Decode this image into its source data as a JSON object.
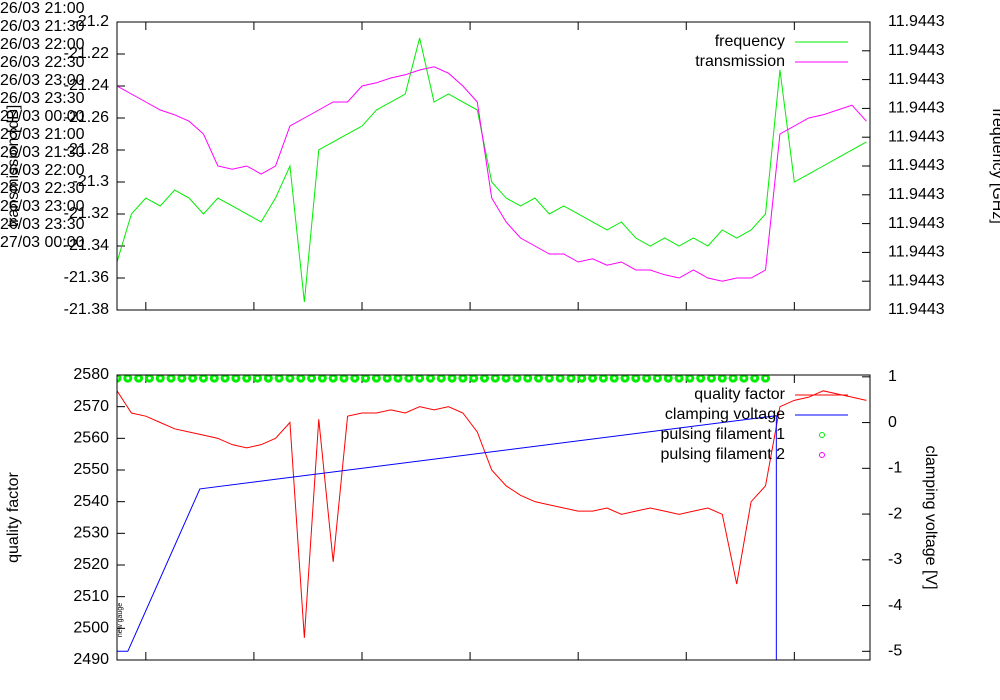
{
  "chart_data": [
    {
      "type": "line",
      "ylabel": "transmission [dB]",
      "y2label": "frequency [GHz]",
      "legend": "top right",
      "xlim": [
        "26/03 20:52",
        "27/03 00:21"
      ],
      "xticks": [
        {
          "value": "26/03 21:00",
          "label": "26/03\n21:00"
        },
        {
          "value": "26/03 21:30",
          "label": "26/03\n21:30"
        },
        {
          "value": "26/03 22:00",
          "label": "26/03\n22:00"
        },
        {
          "value": "26/03 22:30",
          "label": "26/03\n22:30"
        },
        {
          "value": "26/03 23:00",
          "label": "26/03\n23:00"
        },
        {
          "value": "26/03 23:30",
          "label": "26/03\n23:30"
        },
        {
          "value": "27/03 00:00",
          "label": "27/03\n00:00"
        }
      ],
      "ylim": [
        -21.38,
        -21.2
      ],
      "yticks": [
        -21.2,
        -21.22,
        -21.24,
        -21.26,
        -21.28,
        -21.3,
        -21.32,
        -21.34,
        -21.36,
        -21.38
      ],
      "y2lim": [
        11.94428,
        11.94433
      ],
      "y2ticks": [
        {
          "value": 11.94428,
          "label": "11.9443"
        },
        {
          "value": 11.944285,
          "label": "11.9443"
        },
        {
          "value": 11.94429,
          "label": "11.9443"
        },
        {
          "value": 11.944295,
          "label": "11.9443"
        },
        {
          "value": 11.9443,
          "label": "11.9443"
        },
        {
          "value": 11.944305,
          "label": "11.9443"
        },
        {
          "value": 11.94431,
          "label": "11.9443"
        },
        {
          "value": 11.944315,
          "label": "11.9443"
        },
        {
          "value": 11.94432,
          "label": "11.9443"
        },
        {
          "value": 11.944325,
          "label": "11.9443"
        },
        {
          "value": 11.94433,
          "label": "11.9443"
        }
      ],
      "x": [
        "26/03 20:52",
        "26/03 20:56",
        "26/03 21:00",
        "26/03 21:04",
        "26/03 21:08",
        "26/03 21:12",
        "26/03 21:16",
        "26/03 21:20",
        "26/03 21:24",
        "26/03 21:28",
        "26/03 21:32",
        "26/03 21:36",
        "26/03 21:40",
        "26/03 21:44",
        "26/03 21:48",
        "26/03 21:52",
        "26/03 21:56",
        "26/03 22:00",
        "26/03 22:04",
        "26/03 22:08",
        "26/03 22:12",
        "26/03 22:16",
        "26/03 22:20",
        "26/03 22:24",
        "26/03 22:28",
        "26/03 22:32",
        "26/03 22:36",
        "26/03 22:40",
        "26/03 22:44",
        "26/03 22:48",
        "26/03 22:52",
        "26/03 22:56",
        "26/03 23:00",
        "26/03 23:04",
        "26/03 23:08",
        "26/03 23:12",
        "26/03 23:16",
        "26/03 23:20",
        "26/03 23:24",
        "26/03 23:28",
        "26/03 23:32",
        "26/03 23:36",
        "26/03 23:40",
        "26/03 23:44",
        "26/03 23:48",
        "26/03 23:52",
        "26/03 23:56",
        "27/03 00:00",
        "27/03 00:04",
        "27/03 00:08",
        "27/03 00:12",
        "27/03 00:16",
        "27/03 00:20"
      ],
      "series": [
        {
          "name": "frequency",
          "color": "#00ee00",
          "axis": "y2",
          "marker": "line",
          "values": [
            11.94428833,
            11.94429667,
            11.94429944,
            11.94429806,
            11.94430083,
            11.94429944,
            11.94429667,
            11.94429944,
            11.94429806,
            11.94429667,
            11.94429528,
            11.94429944,
            11.944305,
            11.94428139,
            11.94430778,
            11.94430917,
            11.94431056,
            11.94431194,
            11.94431472,
            11.94431611,
            11.9443175,
            11.94432722,
            11.94431611,
            11.9443175,
            11.94431611,
            11.94431472,
            11.94430222,
            11.94429944,
            11.94429806,
            11.94429944,
            11.94429667,
            11.94429806,
            11.94429667,
            11.94429528,
            11.94429389,
            11.94429528,
            11.9442925,
            11.94429111,
            11.9442925,
            11.94429111,
            11.9442925,
            11.94429111,
            11.94429389,
            11.9442925,
            11.94429389,
            11.94429667,
            11.94432167,
            11.94430222,
            11.94430361,
            11.944305,
            11.94430639,
            11.94430778,
            11.94430917
          ]
        },
        {
          "name": "transmission",
          "color": "#ff00ff",
          "marker": "line",
          "values": [
            -21.24,
            -21.245,
            -21.25,
            -21.255,
            -21.258,
            -21.262,
            -21.27,
            -21.29,
            -21.292,
            -21.29,
            -21.295,
            -21.29,
            -21.265,
            -21.26,
            -21.255,
            -21.25,
            -21.25,
            -21.24,
            -21.238,
            -21.235,
            -21.233,
            -21.23,
            -21.228,
            -21.232,
            -21.24,
            -21.25,
            -21.31,
            -21.325,
            -21.335,
            -21.34,
            -21.345,
            -21.345,
            -21.35,
            -21.348,
            -21.352,
            -21.35,
            -21.355,
            -21.355,
            -21.358,
            -21.36,
            -21.355,
            -21.36,
            -21.362,
            -21.36,
            -21.36,
            -21.355,
            -21.27,
            -21.265,
            -21.26,
            -21.258,
            -21.255,
            -21.252,
            -21.262
          ]
        }
      ]
    },
    {
      "type": "line",
      "ylabel": "quality factor",
      "y2label": "clamping voltage [V]",
      "legend": "top right",
      "annotation": "new gauge",
      "xlim": [
        "26/03 20:52",
        "27/03 00:21"
      ],
      "xticks": [
        {
          "value": "26/03 21:00",
          "label": "26/03\n21:00"
        },
        {
          "value": "26/03 21:30",
          "label": "26/03\n21:30"
        },
        {
          "value": "26/03 22:00",
          "label": "26/03\n22:00"
        },
        {
          "value": "26/03 22:30",
          "label": "26/03\n22:30"
        },
        {
          "value": "26/03 23:00",
          "label": "26/03\n23:00"
        },
        {
          "value": "26/03 23:30",
          "label": "26/03\n23:30"
        },
        {
          "value": "27/03 00:00",
          "label": "27/03\n00:00"
        }
      ],
      "ylim": [
        2490,
        2580
      ],
      "yticks": [
        2580,
        2570,
        2560,
        2550,
        2540,
        2530,
        2520,
        2510,
        2500,
        2490
      ],
      "y2lim": [
        -5.19,
        1.04
      ],
      "y2ticks": [
        1,
        0,
        -1,
        -2,
        -3,
        -4,
        -5
      ],
      "x": [
        "26/03 20:52",
        "26/03 20:56",
        "26/03 21:00",
        "26/03 21:04",
        "26/03 21:08",
        "26/03 21:12",
        "26/03 21:16",
        "26/03 21:20",
        "26/03 21:24",
        "26/03 21:28",
        "26/03 21:32",
        "26/03 21:36",
        "26/03 21:40",
        "26/03 21:44",
        "26/03 21:48",
        "26/03 21:52",
        "26/03 21:56",
        "26/03 22:00",
        "26/03 22:04",
        "26/03 22:08",
        "26/03 22:12",
        "26/03 22:16",
        "26/03 22:20",
        "26/03 22:24",
        "26/03 22:28",
        "26/03 22:32",
        "26/03 22:36",
        "26/03 22:40",
        "26/03 22:44",
        "26/03 22:48",
        "26/03 22:52",
        "26/03 22:56",
        "26/03 23:00",
        "26/03 23:04",
        "26/03 23:08",
        "26/03 23:12",
        "26/03 23:16",
        "26/03 23:20",
        "26/03 23:24",
        "26/03 23:28",
        "26/03 23:32",
        "26/03 23:36",
        "26/03 23:40",
        "26/03 23:44",
        "26/03 23:48",
        "26/03 23:52",
        "26/03 23:56",
        "27/03 00:00",
        "27/03 00:04",
        "27/03 00:08",
        "27/03 00:12",
        "27/03 00:16",
        "27/03 00:20"
      ],
      "series": [
        {
          "name": "quality factor",
          "color": "#ff0000",
          "marker": "line",
          "values": [
            2575,
            2568,
            2567,
            2565,
            2563,
            2562,
            2561,
            2560,
            2558,
            2557,
            2558,
            2560,
            2565,
            2497,
            2566,
            2521,
            2567,
            2568,
            2568,
            2569,
            2568,
            2570,
            2569,
            2570,
            2568,
            2562,
            2550,
            2545,
            2542,
            2540,
            2539,
            2538,
            2537,
            2537,
            2538,
            2536,
            2537,
            2538,
            2537,
            2536,
            2537,
            2538,
            2536,
            2514,
            2540,
            2545,
            2570,
            2572,
            2573,
            2575,
            2574,
            2573,
            2572
          ]
        },
        {
          "name": "clamping voltage",
          "color": "#0000ff",
          "axis": "y2",
          "marker": "line",
          "x": [
            "26/03 20:52",
            "26/03 20:55",
            "26/03 21:15",
            "26/03 23:55",
            "26/03 23:55"
          ],
          "values": [
            -5.0,
            -5.0,
            -1.45,
            0.15,
            -5.19
          ]
        },
        {
          "name": "pulsing filament 1",
          "color": "#00ee00",
          "marker": "circle",
          "x": [
            "26/03 20:52",
            "26/03 20:55",
            "26/03 20:58",
            "26/03 21:01",
            "26/03 21:04",
            "26/03 21:07",
            "26/03 21:10",
            "26/03 21:13",
            "26/03 21:16",
            "26/03 21:19",
            "26/03 21:22",
            "26/03 21:25",
            "26/03 21:28",
            "26/03 21:31",
            "26/03 21:34",
            "26/03 21:37",
            "26/03 21:40",
            "26/03 21:43",
            "26/03 21:46",
            "26/03 21:49",
            "26/03 21:52",
            "26/03 21:55",
            "26/03 21:58",
            "26/03 22:01",
            "26/03 22:04",
            "26/03 22:07",
            "26/03 22:10",
            "26/03 22:13",
            "26/03 22:16",
            "26/03 22:19",
            "26/03 22:22",
            "26/03 22:25",
            "26/03 22:28",
            "26/03 22:31",
            "26/03 22:34",
            "26/03 22:37",
            "26/03 22:40",
            "26/03 22:43",
            "26/03 22:46",
            "26/03 22:49",
            "26/03 22:52",
            "26/03 22:55",
            "26/03 22:58",
            "26/03 23:01",
            "26/03 23:04",
            "26/03 23:07",
            "26/03 23:10",
            "26/03 23:13",
            "26/03 23:16",
            "26/03 23:19",
            "26/03 23:22",
            "26/03 23:25",
            "26/03 23:28",
            "26/03 23:31",
            "26/03 23:34",
            "26/03 23:37",
            "26/03 23:40",
            "26/03 23:43",
            "26/03 23:46",
            "26/03 23:49",
            "26/03 23:52"
          ],
          "values": [
            2579,
            2579,
            2579,
            2579,
            2579,
            2579,
            2579,
            2579,
            2579,
            2579,
            2579,
            2579,
            2579,
            2579,
            2579,
            2579,
            2579,
            2579,
            2579,
            2579,
            2579,
            2579,
            2579,
            2579,
            2579,
            2579,
            2579,
            2579,
            2579,
            2579,
            2579,
            2579,
            2579,
            2579,
            2579,
            2579,
            2579,
            2579,
            2579,
            2579,
            2579,
            2579,
            2579,
            2579,
            2579,
            2579,
            2579,
            2579,
            2579,
            2579,
            2579,
            2579,
            2579,
            2579,
            2579,
            2579,
            2579,
            2579,
            2579,
            2579,
            2579
          ]
        },
        {
          "name": "pulsing filament 2",
          "color": "#ff00ff",
          "marker": "circle",
          "x": [],
          "values": []
        }
      ]
    }
  ]
}
